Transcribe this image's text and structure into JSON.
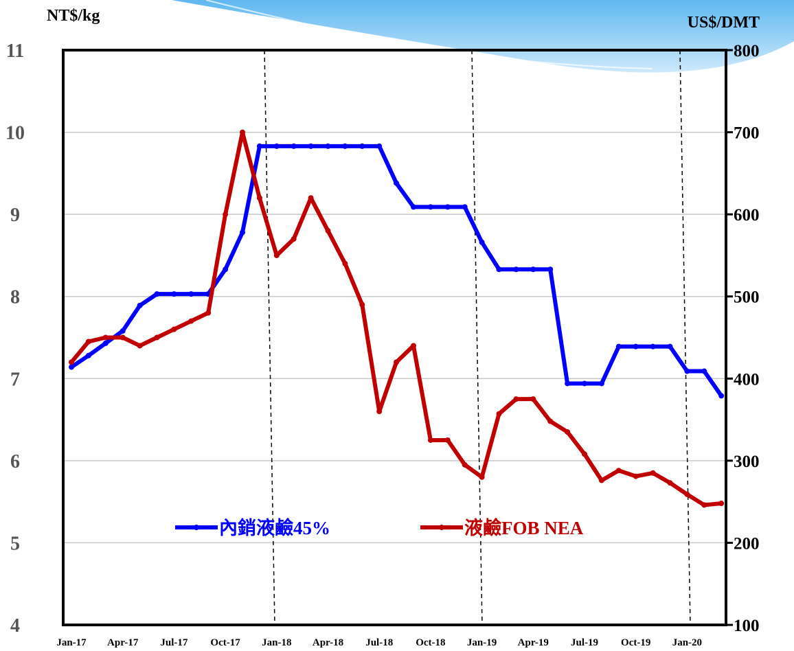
{
  "chart_data": {
    "type": "line",
    "y_label": "NT$/kg",
    "y2_label": "US$/DMT",
    "categories": [
      "Jan-17",
      null,
      null,
      "Apr-17",
      null,
      null,
      "Jul-17",
      null,
      null,
      "Oct-17",
      null,
      null,
      "Jan-18",
      null,
      null,
      "Apr-18",
      null,
      null,
      "Jul-18",
      null,
      null,
      "Oct-18",
      null,
      null,
      "Jan-19",
      null,
      null,
      "Apr-19",
      null,
      null,
      "Jul-19",
      null,
      null,
      "Oct-19",
      null,
      null,
      "Jan-20",
      null,
      null
    ],
    "series": [
      {
        "name": "內銷液鹼45%",
        "color": "#0000ff",
        "axis": "y",
        "values": [
          7.14,
          7.28,
          7.43,
          7.58,
          7.89,
          8.03,
          8.03,
          8.03,
          8.03,
          8.33,
          8.78,
          9.83,
          9.83,
          9.83,
          9.83,
          9.83,
          9.83,
          9.83,
          9.83,
          9.38,
          9.09,
          9.09,
          9.09,
          9.09,
          8.66,
          8.33,
          8.33,
          8.33,
          8.33,
          6.94,
          6.94,
          6.94,
          7.39,
          7.39,
          7.39,
          7.39,
          7.09,
          7.09,
          6.79
        ]
      },
      {
        "name": "液鹼FOB NEA",
        "color": "#c00000",
        "axis": "y2",
        "values": [
          420,
          445,
          450,
          450,
          440,
          450,
          460,
          470,
          480,
          600,
          700,
          620,
          550,
          570,
          620,
          580,
          540,
          490,
          360,
          420,
          440,
          325,
          325,
          295,
          280,
          357,
          375,
          375,
          348,
          335,
          308,
          276,
          288,
          281,
          285,
          273,
          259,
          246,
          248
        ]
      }
    ],
    "ylim": [
      4,
      11
    ],
    "yticks": [
      4,
      5,
      6,
      7,
      8,
      9,
      10,
      11
    ],
    "y2lim": [
      100,
      800
    ],
    "y2ticks": [
      100,
      200,
      300,
      400,
      500,
      600,
      700,
      800
    ],
    "grid": true
  }
}
